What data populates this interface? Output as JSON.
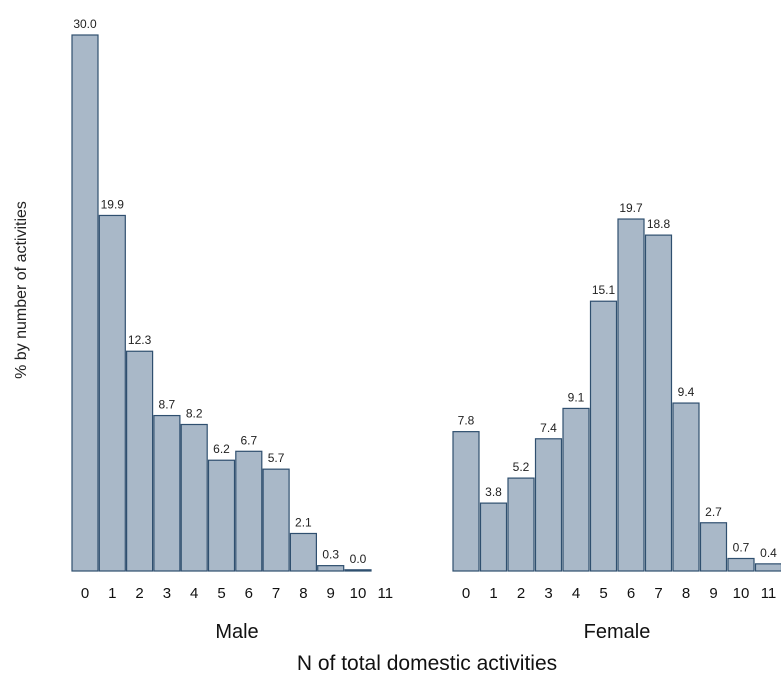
{
  "chart_data": {
    "type": "bar",
    "xlabel": "N of total domestic activities",
    "ylabel": "% by number of activities",
    "categories": [
      "0",
      "1",
      "2",
      "3",
      "4",
      "5",
      "6",
      "7",
      "8",
      "9",
      "10",
      "11"
    ],
    "ylim": [
      0,
      30
    ],
    "grid": false,
    "legend": "none",
    "bar_color": "#a9b8c8",
    "edge_color": "#2f4f6f",
    "panels": [
      {
        "name": "Male",
        "values": [
          30.0,
          19.9,
          12.3,
          8.7,
          8.2,
          6.2,
          6.7,
          5.7,
          2.1,
          0.3,
          0.0,
          null
        ],
        "labels": [
          "30.0",
          "19.9",
          "12.3",
          "8.7",
          "8.2",
          "6.2",
          "6.7",
          "5.7",
          "2.1",
          "0.3",
          "0.0",
          ""
        ]
      },
      {
        "name": "Female",
        "values": [
          7.8,
          3.8,
          5.2,
          7.4,
          9.1,
          15.1,
          19.7,
          18.8,
          9.4,
          2.7,
          0.7,
          0.4
        ],
        "labels": [
          "7.8",
          "3.8",
          "5.2",
          "7.4",
          "9.1",
          "15.1",
          "19.7",
          "18.8",
          "9.4",
          "2.7",
          "0.7",
          "0.4"
        ]
      }
    ]
  }
}
